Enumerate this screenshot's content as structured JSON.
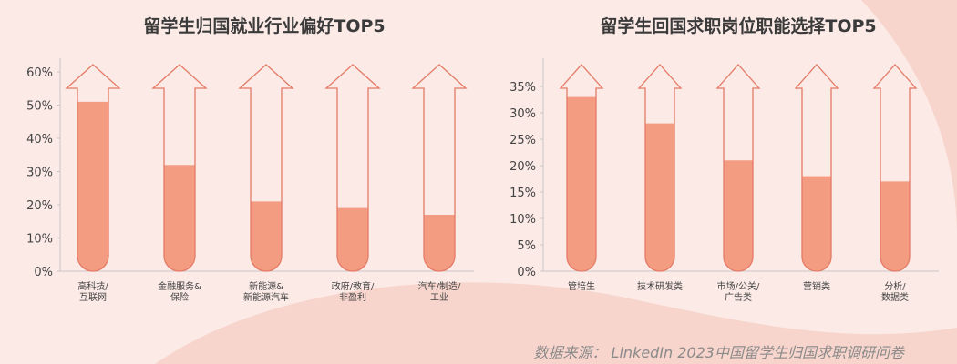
{
  "charts": [
    {
      "id": "chart1",
      "title": "留学生归国就业行业偏好TOP5",
      "chart_data": {
        "type": "bar",
        "title": "留学生归国就业行业偏好TOP5",
        "categories": [
          [
            "高科技/",
            "互联网"
          ],
          [
            "金融服务&",
            "保险"
          ],
          [
            "新能源&",
            "新能源汽车"
          ],
          [
            "政府/教育/",
            "非盈利"
          ],
          [
            "汽车/制造/",
            "工业"
          ]
        ],
        "values": [
          51,
          32,
          21,
          19,
          17
        ],
        "ylim": [
          0,
          60
        ],
        "yticks": [
          0,
          10,
          20,
          30,
          40,
          50,
          60
        ],
        "tick_format": "%",
        "grid": false
      }
    },
    {
      "id": "chart2",
      "title": "留学生回国求职岗位职能选择TOP5",
      "chart_data": {
        "type": "bar",
        "title": "留学生回国求职岗位职能选择TOP5",
        "categories": [
          [
            "管培生"
          ],
          [
            "技术研发类"
          ],
          [
            "市场/公关/",
            "广告类"
          ],
          [
            "营销类"
          ],
          [
            "分析/",
            "数据类"
          ]
        ],
        "values": [
          33,
          28,
          21,
          18,
          17
        ],
        "ylim": [
          0,
          35
        ],
        "yticks": [
          0,
          5,
          10,
          15,
          20,
          25,
          30,
          35
        ],
        "tick_format": "%",
        "grid": false
      }
    }
  ],
  "source": "数据来源： LinkedIn 2023中国留学生归国求职调研问卷",
  "colors": {
    "fill": "#f49c82",
    "outline": "#e47b66",
    "axis": "#c8c8c8",
    "text": "#444444"
  }
}
